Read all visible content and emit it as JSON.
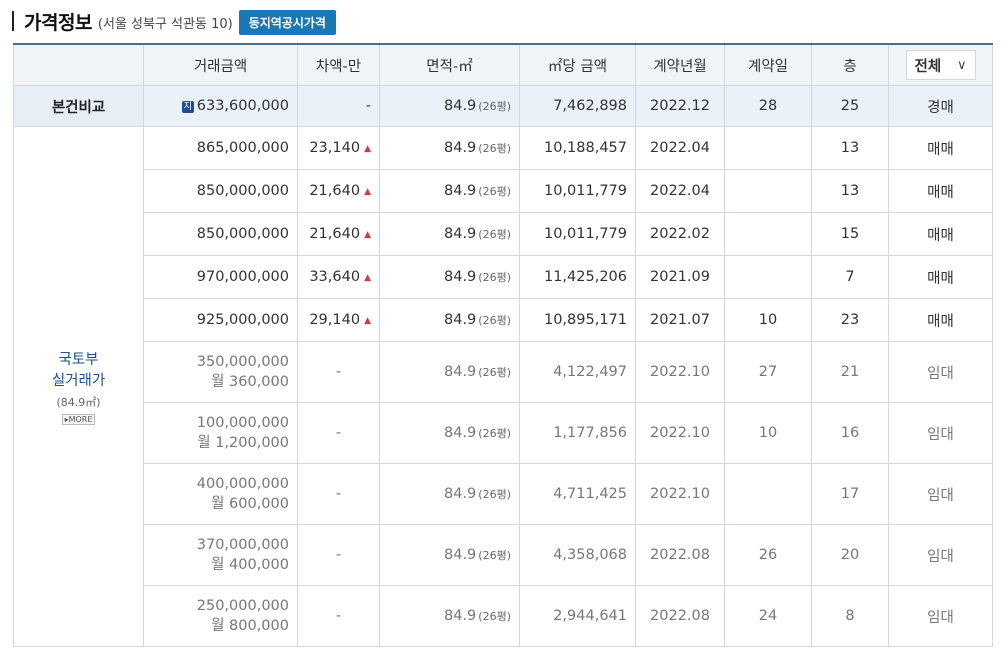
{
  "header": {
    "title": "가격정보",
    "address": "(서울 성북구 석관동 10)",
    "official_price_button": "동지역공시가격"
  },
  "table": {
    "columns": [
      "거래금액",
      "차액-만",
      "면적-㎡",
      "㎡당 금액",
      "계약년월",
      "계약일",
      "층"
    ],
    "filter": {
      "selected": "전체"
    },
    "compare_row": {
      "label": "본건비교",
      "marker": "지",
      "amount": "633,600,000",
      "diff": "-",
      "area": "84.9",
      "area_py": "(26평)",
      "per_m2": "7,462,898",
      "ym": "2022.12",
      "day": "28",
      "floor": "25",
      "type": "경매"
    },
    "group": {
      "label_line1": "국토부",
      "label_line2": "실거래가",
      "area": "(84.9㎡)",
      "more": "▸MORE"
    },
    "deals": [
      {
        "amount": "865,000,000",
        "diff": "23,140",
        "area": "84.9",
        "area_py": "(26평)",
        "per_m2": "10,188,457",
        "ym": "2022.04",
        "day": "",
        "floor": "13",
        "type": "매매"
      },
      {
        "amount": "850,000,000",
        "diff": "21,640",
        "area": "84.9",
        "area_py": "(26평)",
        "per_m2": "10,011,779",
        "ym": "2022.04",
        "day": "",
        "floor": "13",
        "type": "매매"
      },
      {
        "amount": "850,000,000",
        "diff": "21,640",
        "area": "84.9",
        "area_py": "(26평)",
        "per_m2": "10,011,779",
        "ym": "2022.02",
        "day": "",
        "floor": "15",
        "type": "매매"
      },
      {
        "amount": "970,000,000",
        "diff": "33,640",
        "area": "84.9",
        "area_py": "(26평)",
        "per_m2": "11,425,206",
        "ym": "2021.09",
        "day": "",
        "floor": "7",
        "type": "매매"
      },
      {
        "amount": "925,000,000",
        "diff": "29,140",
        "area": "84.9",
        "area_py": "(26평)",
        "per_m2": "10,895,171",
        "ym": "2021.07",
        "day": "10",
        "floor": "23",
        "type": "매매"
      }
    ],
    "rents": [
      {
        "deposit": "350,000,000",
        "monthly": "월 360,000",
        "diff": "-",
        "area": "84.9",
        "area_py": "(26평)",
        "per_m2": "4,122,497",
        "ym": "2022.10",
        "day": "27",
        "floor": "21",
        "type": "임대"
      },
      {
        "deposit": "100,000,000",
        "monthly": "월 1,200,000",
        "diff": "-",
        "area": "84.9",
        "area_py": "(26평)",
        "per_m2": "1,177,856",
        "ym": "2022.10",
        "day": "10",
        "floor": "16",
        "type": "임대"
      },
      {
        "deposit": "400,000,000",
        "monthly": "월 600,000",
        "diff": "-",
        "area": "84.9",
        "area_py": "(26평)",
        "per_m2": "4,711,425",
        "ym": "2022.10",
        "day": "",
        "floor": "17",
        "type": "임대"
      },
      {
        "deposit": "370,000,000",
        "monthly": "월 400,000",
        "diff": "-",
        "area": "84.9",
        "area_py": "(26평)",
        "per_m2": "4,358,068",
        "ym": "2022.08",
        "day": "26",
        "floor": "20",
        "type": "임대"
      },
      {
        "deposit": "250,000,000",
        "monthly": "월 800,000",
        "diff": "-",
        "area": "84.9",
        "area_py": "(26평)",
        "per_m2": "2,944,641",
        "ym": "2022.08",
        "day": "24",
        "floor": "8",
        "type": "임대"
      }
    ],
    "icons": {
      "up_triangle": "up-triangle-icon",
      "chevron": "chevron-down-icon"
    }
  }
}
